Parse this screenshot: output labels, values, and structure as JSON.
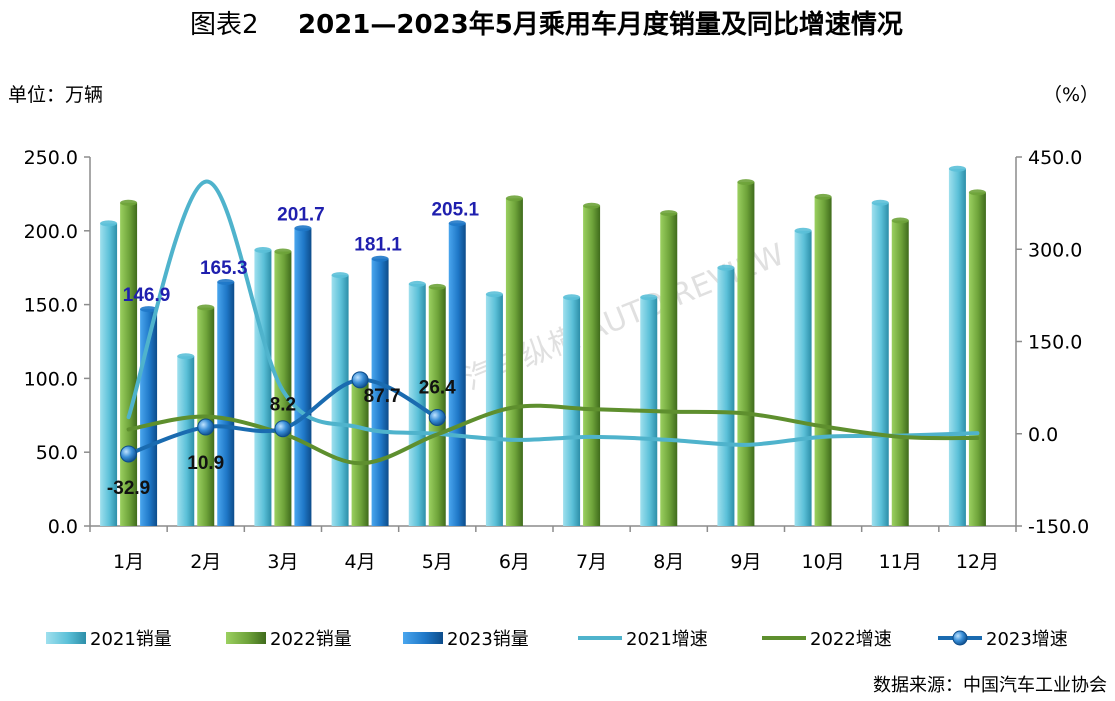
{
  "title": {
    "prefix": "图表2",
    "main": "2021—2023年5月乘用车月度销量及同比增速情况"
  },
  "unit_left": "单位：万辆",
  "unit_right": "（%）",
  "source": "数据来源：中国汽车工业协会",
  "watermark": "汽车纵横 AUTO REVIEW",
  "colors": {
    "bar2021": "#5bc0d8",
    "bar2022": "#6ea33a",
    "bar2023": "#1f78c8",
    "line2021": "#4fb3cc",
    "line2022": "#5e8f2e",
    "line2023": "#1a6bb0",
    "label2023": "#1f1fae"
  },
  "chart_data": {
    "type": "bar",
    "categories": [
      "1月",
      "2月",
      "3月",
      "4月",
      "5月",
      "6月",
      "7月",
      "8月",
      "9月",
      "10月",
      "11月",
      "12月"
    ],
    "y_left": {
      "range": [
        0,
        250
      ],
      "ticks": [
        "0.0",
        "50.0",
        "100.0",
        "150.0",
        "200.0",
        "250.0"
      ]
    },
    "y_right": {
      "range": [
        -150,
        450
      ],
      "ticks": [
        "-150.0",
        "0.0",
        "150.0",
        "300.0",
        "450.0"
      ]
    },
    "series": [
      {
        "name": "2021销量",
        "kind": "bar",
        "values": [
          205,
          115,
          187,
          170,
          164,
          157,
          155,
          155,
          175,
          200,
          219,
          242
        ]
      },
      {
        "name": "2022销量",
        "kind": "bar",
        "values": [
          219,
          148,
          186,
          97,
          162,
          222,
          217,
          212,
          233,
          223,
          207,
          226
        ]
      },
      {
        "name": "2023销量",
        "kind": "bar",
        "values": [
          146.9,
          165.3,
          201.7,
          181.1,
          205.1,
          null,
          null,
          null,
          null,
          null,
          null,
          null
        ]
      },
      {
        "name": "2021增速",
        "kind": "line",
        "axis": "right",
        "values": [
          27,
          410,
          70,
          10,
          0,
          -10,
          -5,
          -10,
          -18,
          -5,
          -3,
          1
        ]
      },
      {
        "name": "2022增速",
        "kind": "line",
        "axis": "right",
        "values": [
          7,
          28,
          0,
          -48,
          -1,
          43,
          40,
          36,
          33,
          12,
          -5,
          -7
        ]
      },
      {
        "name": "2023增速",
        "kind": "line",
        "axis": "right",
        "values": [
          -32.9,
          10.9,
          8.2,
          87.7,
          26.4,
          null,
          null,
          null,
          null,
          null,
          null,
          null
        ]
      }
    ],
    "bar_labels_2023": [
      "146.9",
      "165.3",
      "201.7",
      "181.1",
      "205.1"
    ],
    "line_labels_2023": [
      "-32.9",
      "10.9",
      "8.2",
      "87.7",
      "26.4"
    ],
    "legend": [
      "2021销量",
      "2022销量",
      "2023销量",
      "2021增速",
      "2022增速",
      "2023增速"
    ],
    "legend_position": "bottom",
    "grid": false
  }
}
